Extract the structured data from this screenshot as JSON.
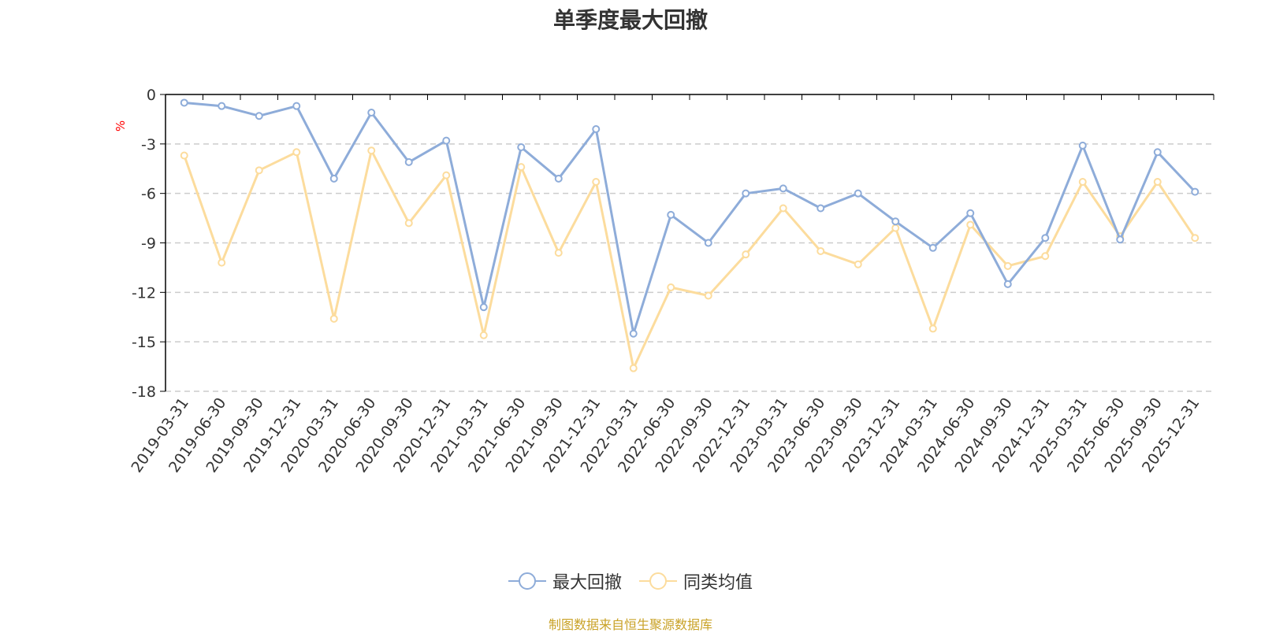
{
  "chart_data": {
    "type": "line",
    "title": "单季度最大回撤",
    "ylabel": "%",
    "ylim": [
      -18,
      0
    ],
    "yticks": [
      "0",
      "-3",
      "-6",
      "-9",
      "-12",
      "-15",
      "-18"
    ],
    "grid": true,
    "legend_position": "bottom",
    "categories": [
      "2019-03-31",
      "2019-06-30",
      "2019-09-30",
      "2019-12-31",
      "2020-03-31",
      "2020-06-30",
      "2020-09-30",
      "2020-12-31",
      "2021-03-31",
      "2021-06-30",
      "2021-09-30",
      "2021-12-31",
      "2022-03-31",
      "2022-06-30",
      "2022-09-30",
      "2022-12-31",
      "2023-03-31",
      "2023-06-30",
      "2023-09-30",
      "2023-12-31",
      "2024-03-31",
      "2024-06-30",
      "2024-09-30",
      "2024-12-31",
      "2025-03-31",
      "2025-06-30",
      "2025-09-30",
      "2025-12-31"
    ],
    "series": [
      {
        "name": "最大回撤",
        "color": "#8eacd9",
        "values": [
          -0.5,
          -0.7,
          -1.3,
          -0.7,
          -5.1,
          -1.1,
          -4.1,
          -2.8,
          -12.9,
          -3.2,
          -5.1,
          -2.1,
          -14.5,
          -7.3,
          -9.0,
          -6.0,
          -5.7,
          -6.9,
          -6.0,
          -7.7,
          -9.3,
          -7.2,
          -11.5,
          -8.7,
          -3.1,
          -8.8,
          -3.5,
          -5.9
        ]
      },
      {
        "name": "同类均值",
        "color": "#fcdc9d",
        "values": [
          -3.7,
          -10.2,
          -4.6,
          -3.5,
          -13.6,
          -3.4,
          -7.8,
          -4.9,
          -14.6,
          -4.4,
          -9.6,
          -5.3,
          -16.6,
          -11.7,
          -12.2,
          -9.7,
          -6.9,
          -9.5,
          -10.3,
          -8.1,
          -14.2,
          -7.9,
          -10.4,
          -9.8,
          -5.3,
          -8.6,
          -5.3,
          -8.7
        ]
      }
    ]
  },
  "source_text": "制图数据来自恒生聚源数据库",
  "colors": {
    "title": "#333333",
    "axis": "#000000",
    "grid": "#cccccc",
    "unit_label": "#ff0000",
    "source_text": "#c9a227"
  }
}
